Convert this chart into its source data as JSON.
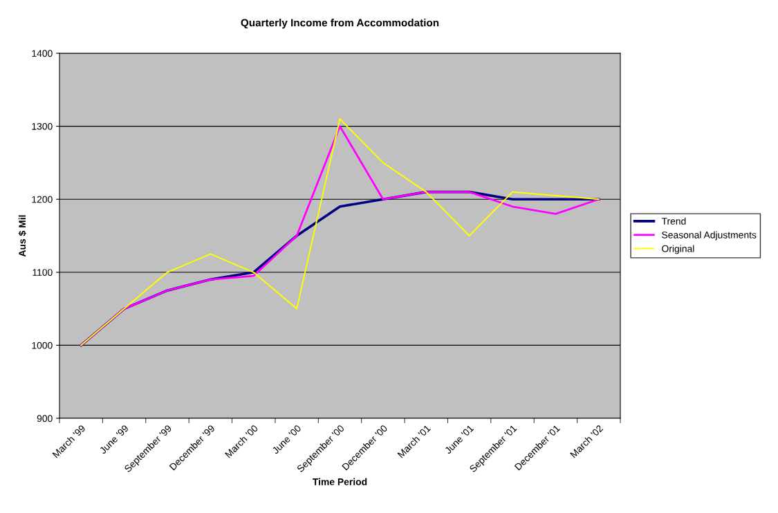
{
  "chart_data": {
    "type": "line",
    "title": "Quarterly Income from Accommodation",
    "xlabel": "Time Period",
    "ylabel": "Aus $ Mil",
    "categories": [
      "March '99",
      "June '99",
      "September '99",
      "December '99",
      "March '00",
      "June '00",
      "September '00",
      "December '00",
      "March '01",
      "June '01",
      "September '01",
      "December '01",
      "March '02"
    ],
    "series": [
      {
        "name": "Trend",
        "color": "#000080",
        "values": [
          1000,
          1050,
          1075,
          1090,
          1100,
          1150,
          1190,
          1200,
          1210,
          1210,
          1200,
          1200,
          1200
        ]
      },
      {
        "name": "Seasonal Adjustments",
        "color": "#ff00ff",
        "values": [
          1000,
          1050,
          1075,
          1090,
          1095,
          1150,
          1300,
          1200,
          1210,
          1210,
          1190,
          1180,
          1200
        ]
      },
      {
        "name": "Original",
        "color": "#ffff00",
        "values": [
          1000,
          1050,
          1100,
          1125,
          1100,
          1050,
          1310,
          1250,
          1210,
          1150,
          1210,
          1205,
          1200
        ]
      }
    ],
    "ylim": [
      900,
      1400
    ],
    "yticks": [
      900,
      1000,
      1100,
      1200,
      1300,
      1400
    ],
    "grid": "y",
    "legend": "right",
    "marker": "none",
    "line_style": "solid"
  }
}
